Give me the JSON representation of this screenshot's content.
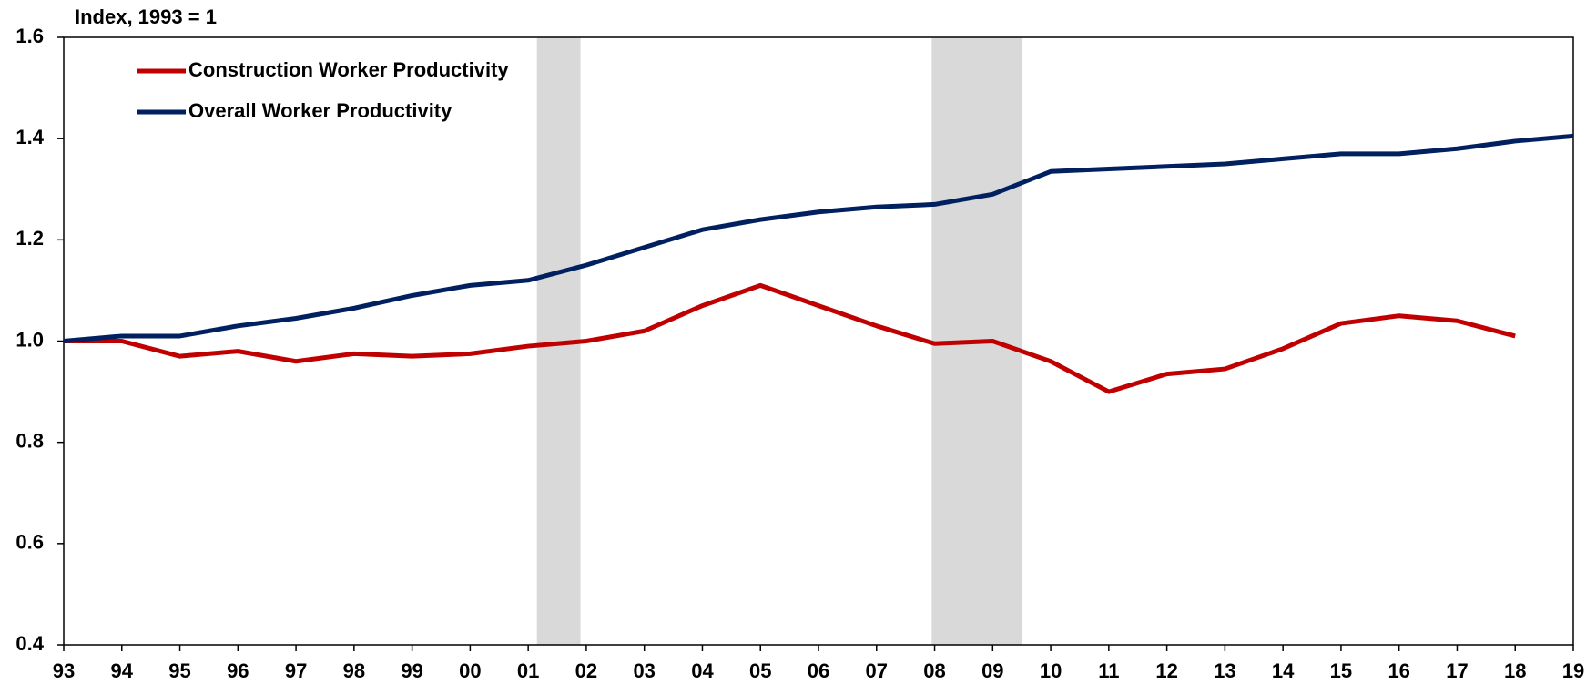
{
  "chart_data": {
    "type": "line",
    "y_label": "Index, 1993 = 1",
    "x": [
      1993,
      1994,
      1995,
      1996,
      1997,
      1998,
      1999,
      2000,
      2001,
      2002,
      2003,
      2004,
      2005,
      2006,
      2007,
      2008,
      2009,
      2010,
      2011,
      2012,
      2013,
      2014,
      2015,
      2016,
      2017,
      2018,
      2019
    ],
    "series": [
      {
        "name": "Construction Worker Productivity",
        "color": "#c00000",
        "values": [
          1.0,
          1.0,
          0.97,
          0.98,
          0.96,
          0.975,
          0.97,
          0.975,
          0.99,
          1.0,
          1.02,
          1.07,
          1.11,
          1.07,
          1.03,
          0.995,
          1.0,
          0.96,
          0.9,
          0.935,
          0.945,
          0.985,
          1.035,
          1.05,
          1.04,
          1.01,
          null
        ]
      },
      {
        "name": "Overall Worker Productivity",
        "color": "#002060",
        "values": [
          1.0,
          1.01,
          1.01,
          1.03,
          1.045,
          1.065,
          1.09,
          1.11,
          1.12,
          1.15,
          1.185,
          1.22,
          1.24,
          1.255,
          1.265,
          1.27,
          1.29,
          1.335,
          1.34,
          1.345,
          1.35,
          1.36,
          1.37,
          1.37,
          1.38,
          1.395,
          1.405
        ]
      }
    ],
    "shaded_ranges": [
      [
        2001.15,
        2001.9
      ],
      [
        2007.95,
        2009.5
      ]
    ],
    "shade_color": "#d9d9d9",
    "xlim": [
      1993,
      2019
    ],
    "xticks": [
      {
        "value": 1993,
        "label": "93"
      },
      {
        "value": 1994,
        "label": "94"
      },
      {
        "value": 1995,
        "label": "95"
      },
      {
        "value": 1996,
        "label": "96"
      },
      {
        "value": 1997,
        "label": "97"
      },
      {
        "value": 1998,
        "label": "98"
      },
      {
        "value": 1999,
        "label": "99"
      },
      {
        "value": 2000,
        "label": "00"
      },
      {
        "value": 2001,
        "label": "01"
      },
      {
        "value": 2002,
        "label": "02"
      },
      {
        "value": 2003,
        "label": "03"
      },
      {
        "value": 2004,
        "label": "04"
      },
      {
        "value": 2005,
        "label": "05"
      },
      {
        "value": 2006,
        "label": "06"
      },
      {
        "value": 2007,
        "label": "07"
      },
      {
        "value": 2008,
        "label": "08"
      },
      {
        "value": 2009,
        "label": "09"
      },
      {
        "value": 2010,
        "label": "10"
      },
      {
        "value": 2011,
        "label": "11"
      },
      {
        "value": 2012,
        "label": "12"
      },
      {
        "value": 2013,
        "label": "13"
      },
      {
        "value": 2014,
        "label": "14"
      },
      {
        "value": 2015,
        "label": "15"
      },
      {
        "value": 2016,
        "label": "16"
      },
      {
        "value": 2017,
        "label": "17"
      },
      {
        "value": 2018,
        "label": "18"
      },
      {
        "value": 2019,
        "label": "19"
      }
    ],
    "ylim": [
      0.4,
      1.6
    ],
    "yticks": [
      0.4,
      0.6,
      0.8,
      {
        "value": 1,
        "label": "1.0"
      },
      1.2,
      1.4,
      1.6
    ],
    "legend": "upper left"
  }
}
